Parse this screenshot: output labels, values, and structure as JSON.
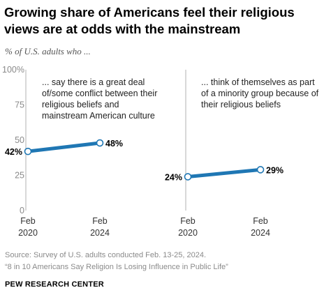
{
  "title": "Growing share of Americans feel their religious views are at odds with the mainstream",
  "subtitle": "% of U.S. adults who ...",
  "source": "Source: Survey of U.S. adults conducted Feb. 13-25, 2024.",
  "report": "“8 in 10 Americans Say Religion Is Losing Influence in Public Life”",
  "org": "PEW RESEARCH CENTER",
  "colors": {
    "line": "#1f77b4",
    "axis": "#b0b0b0",
    "text_muted": "#8a8a8a"
  },
  "chart_data": [
    {
      "type": "line",
      "annotation": [
        "... say there is a great deal",
        "of/some conflict between their",
        "religious beliefs and",
        "mainstream American culture"
      ],
      "x": [
        "Feb 2020",
        "Feb 2024"
      ],
      "x_ticks": [
        [
          "Feb",
          "2020"
        ],
        [
          "Feb",
          "2024"
        ]
      ],
      "values": [
        42,
        48
      ],
      "labels": [
        "42%",
        "48%"
      ],
      "ylim": [
        0,
        100
      ],
      "y_ticks": [
        "0",
        "25",
        "50",
        "75",
        "100%"
      ]
    },
    {
      "type": "line",
      "annotation": [
        "... think of themselves as part",
        "of a minority group because of",
        "their religious beliefs"
      ],
      "x": [
        "Feb 2020",
        "Feb 2024"
      ],
      "x_ticks": [
        [
          "Feb",
          "2020"
        ],
        [
          "Feb",
          "2024"
        ]
      ],
      "values": [
        24,
        29
      ],
      "labels": [
        "24%",
        "29%"
      ],
      "ylim": [
        0,
        100
      ]
    }
  ]
}
